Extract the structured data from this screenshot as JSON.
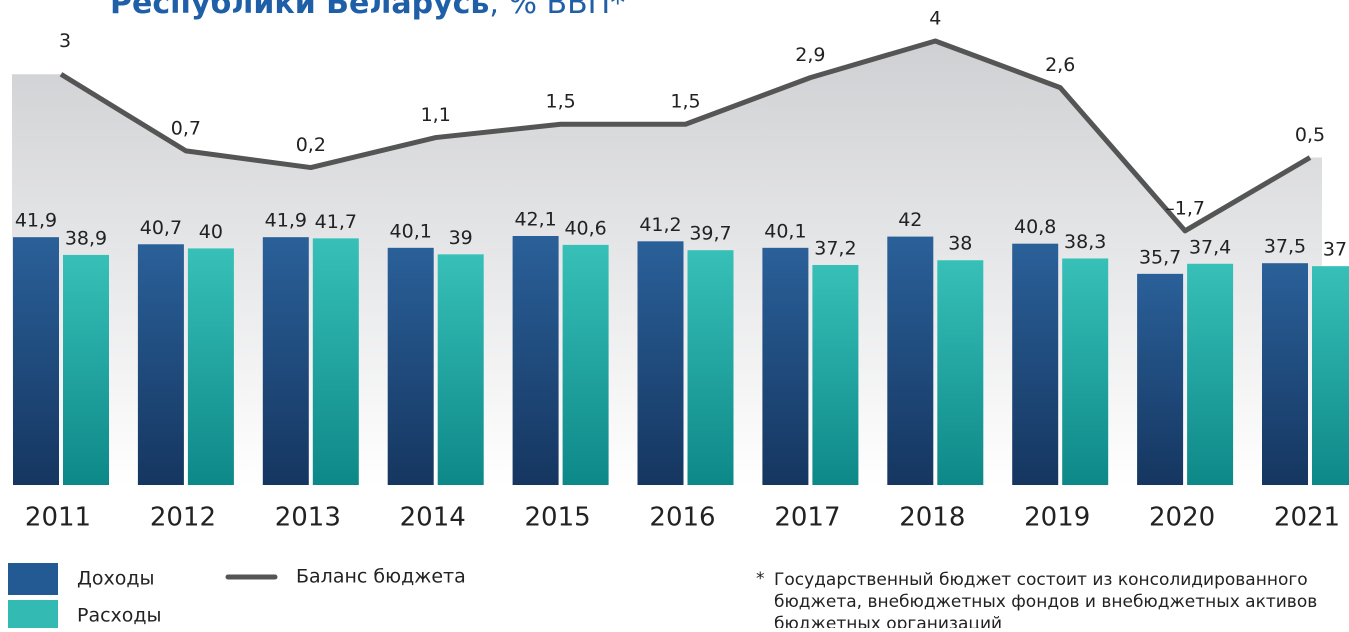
{
  "chart_data": {
    "type": "bar_line",
    "title": "Республики Беларусь",
    "title_suffix": ", % ВВП*",
    "categories": [
      "2011",
      "2012",
      "2013",
      "2014",
      "2015",
      "2016",
      "2017",
      "2018",
      "2019",
      "2020",
      "2021"
    ],
    "series": [
      {
        "name": "Доходы",
        "type": "bar",
        "color": "#245a94",
        "values": [
          41.9,
          40.7,
          41.9,
          40.1,
          42.1,
          41.2,
          40.1,
          42,
          40.8,
          35.7,
          37.5
        ],
        "value_labels": [
          "41,9",
          "40,7",
          "41,9",
          "40,1",
          "42,1",
          "41,2",
          "40,1",
          "42",
          "40,8",
          "35,7",
          "37,5"
        ]
      },
      {
        "name": "Расходы",
        "type": "bar",
        "color": "#33bab3",
        "values": [
          38.9,
          40,
          41.7,
          39,
          40.6,
          39.7,
          37.2,
          38,
          38.3,
          37.4,
          37
        ],
        "value_labels": [
          "38,9",
          "40",
          "41,7",
          "39",
          "40,6",
          "39,7",
          "37,2",
          "38",
          "38,3",
          "37,4",
          "37"
        ]
      },
      {
        "name": "Баланс бюджета",
        "type": "line",
        "axis": "y2",
        "color": "#555555",
        "values": [
          3,
          0.7,
          0.2,
          1.1,
          1.5,
          1.5,
          2.9,
          4,
          2.6,
          -1.7,
          0.5
        ],
        "value_labels": [
          "3",
          "0,7",
          "0,2",
          "1,1",
          "1,5",
          "1,5",
          "2,9",
          "4",
          "2,6",
          "–1,7",
          "0,5"
        ]
      }
    ],
    "ylim": [
      0,
      82
    ],
    "y2lim": [
      -9.33,
      5.23
    ],
    "footnote_marker": "*",
    "footnote": [
      "Государственный бюджет состоит из консолидированного",
      "бюджета, внебюджетных фондов и внебюджетных активов",
      "бюджетных организаций"
    ]
  }
}
